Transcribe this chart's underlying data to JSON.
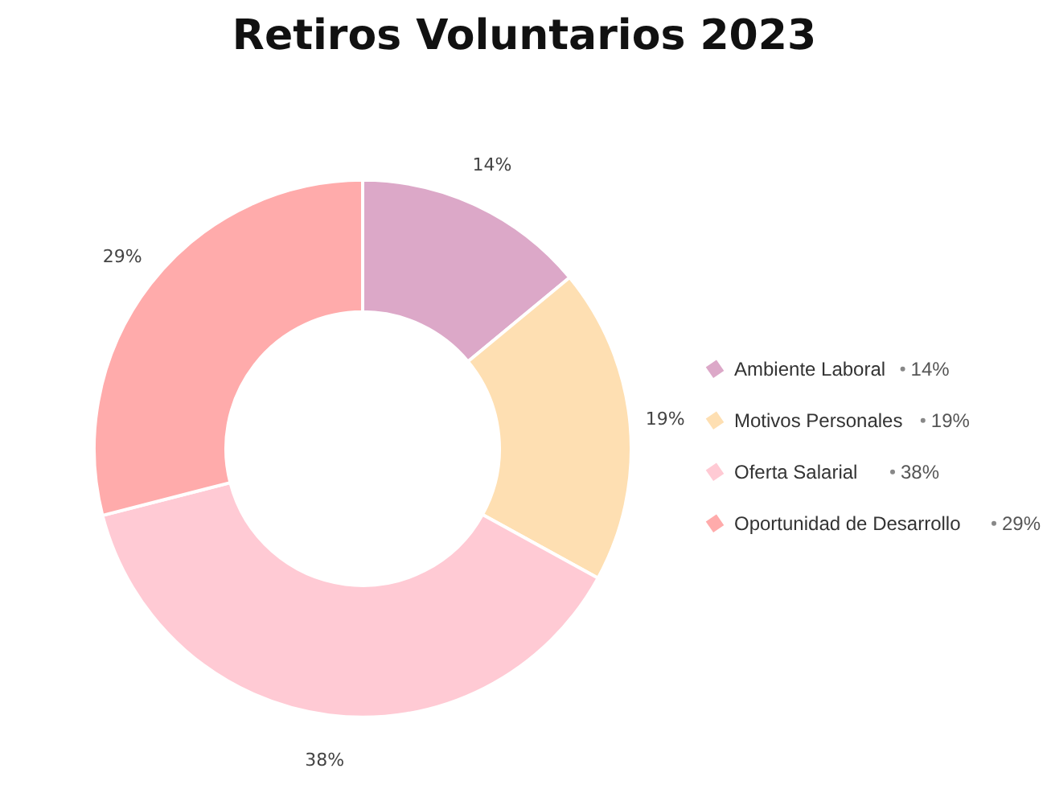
{
  "chart_data": {
    "type": "donut",
    "title": "Retiros Voluntarios 2023",
    "categories": [
      "Ambiente Laboral",
      "Motivos Personales",
      "Oferta Salarial",
      "Oportunidad de Desarrollo"
    ],
    "values": [
      14,
      19,
      38,
      29
    ],
    "value_labels": [
      "14%",
      "19%",
      "38%",
      "29%"
    ],
    "colors": [
      "#dca8c8",
      "#fedfb2",
      "#ffcad4",
      "#ffabab"
    ],
    "legend": "right"
  }
}
